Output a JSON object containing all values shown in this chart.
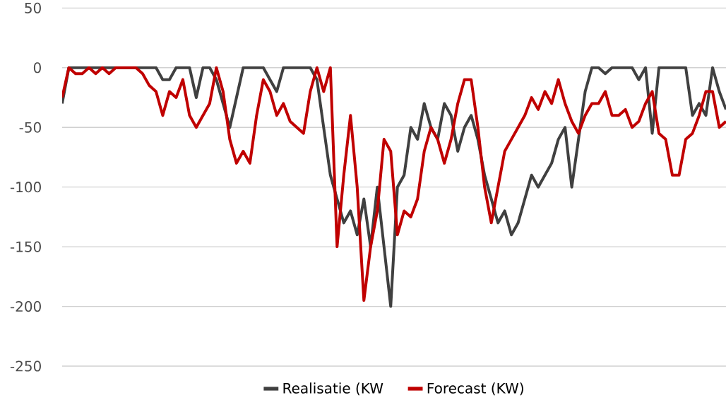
{
  "chart_data": {
    "type": "line",
    "categories": [
      null,
      null,
      null,
      null,
      null,
      null,
      null,
      null,
      null,
      null,
      null,
      null,
      null,
      null,
      null,
      null,
      null,
      null,
      null,
      null,
      null,
      null,
      null,
      null,
      null,
      null,
      null,
      null,
      null,
      null,
      null,
      null,
      null,
      null,
      null,
      null,
      null,
      null,
      null,
      null,
      null,
      null,
      null,
      null,
      null,
      null,
      null,
      null,
      null,
      null,
      null,
      null,
      null,
      null,
      null,
      null,
      null,
      null,
      null,
      null,
      null,
      null,
      null,
      null,
      null,
      null,
      null,
      null,
      null,
      null,
      null,
      null,
      null,
      null,
      null,
      null,
      null,
      null,
      null,
      null,
      null,
      null,
      null,
      null,
      null,
      null,
      null,
      null,
      null,
      null,
      null,
      null,
      null,
      null,
      null,
      null,
      null,
      null,
      null,
      null
    ],
    "series": [
      {
        "name": "Realisatie (KW",
        "color": "#404040",
        "values": [
          -30,
          0,
          0,
          0,
          0,
          0,
          0,
          0,
          0,
          0,
          0,
          0,
          0,
          0,
          0,
          -10,
          -10,
          0,
          0,
          0,
          -25,
          0,
          0,
          -10,
          -30,
          -50,
          -25,
          0,
          0,
          0,
          0,
          -10,
          -20,
          0,
          0,
          0,
          0,
          0,
          -10,
          -50,
          -90,
          -110,
          -130,
          -120,
          -140,
          -110,
          -150,
          -100,
          -150,
          -200,
          -100,
          -90,
          -50,
          -60,
          -30,
          -50,
          -60,
          -30,
          -40,
          -70,
          -50,
          -40,
          -60,
          -90,
          -110,
          -130,
          -120,
          -140,
          -130,
          -110,
          -90,
          -100,
          -90,
          -80,
          -60,
          -50,
          -100,
          -60,
          -20,
          0,
          0,
          -5,
          0,
          0,
          0,
          0,
          -10,
          0,
          -55,
          0,
          0,
          0,
          0,
          0,
          -40,
          -30,
          -40,
          0,
          -20,
          -35
        ]
      },
      {
        "name": "Forecast (KW)",
        "color": "#c00000",
        "values": [
          -25,
          0,
          -5,
          -5,
          0,
          -5,
          0,
          -5,
          0,
          0,
          0,
          0,
          -5,
          -15,
          -20,
          -40,
          -20,
          -25,
          -10,
          -40,
          -50,
          -40,
          -30,
          0,
          -20,
          -60,
          -80,
          -70,
          -80,
          -40,
          -10,
          -20,
          -40,
          -30,
          -45,
          -50,
          -55,
          -20,
          0,
          -20,
          0,
          -150,
          -90,
          -40,
          -100,
          -195,
          -150,
          -120,
          -60,
          -70,
          -140,
          -120,
          -125,
          -110,
          -70,
          -50,
          -60,
          -80,
          -60,
          -30,
          -10,
          -10,
          -50,
          -100,
          -130,
          -100,
          -70,
          -60,
          -50,
          -40,
          -25,
          -35,
          -20,
          -30,
          -10,
          -30,
          -45,
          -55,
          -40,
          -30,
          -30,
          -20,
          -40,
          -40,
          -35,
          -50,
          -45,
          -30,
          -20,
          -55,
          -60,
          -90,
          -90,
          -60,
          -55,
          -40,
          -20,
          -20,
          -50,
          -45
        ]
      }
    ],
    "ylim": [
      -250,
      50
    ],
    "yticks": [
      -250,
      -200,
      -150,
      -100,
      -50,
      0,
      50
    ],
    "grid": "y",
    "legend": "bottom",
    "tick_labels": "y"
  }
}
